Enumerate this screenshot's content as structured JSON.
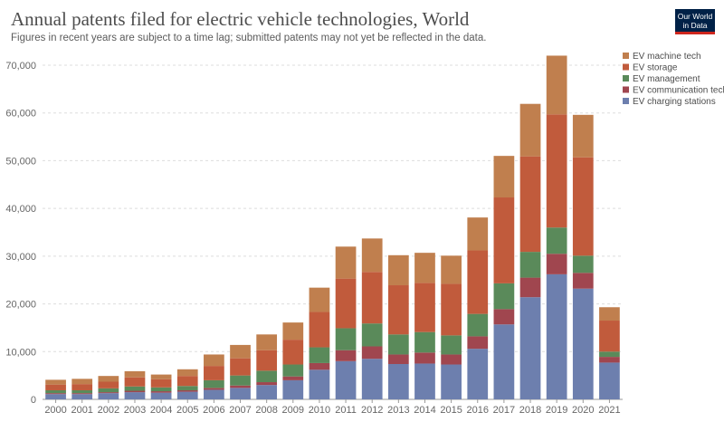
{
  "header": {
    "title": "Annual patents filed for electric vehicle technologies, World",
    "subtitle": "Figures in recent years are subject to a time lag; submitted patents may not yet be reflected in the data.",
    "logo_line1": "Our World",
    "logo_line2": "in Data"
  },
  "chart_data": {
    "type": "bar",
    "stacked": true,
    "title": "Annual patents filed for electric vehicle technologies, World",
    "subtitle": "Figures in recent years are subject to a time lag; submitted patents may not yet be reflected in the data.",
    "xlabel": "",
    "ylabel": "",
    "ylim": [
      0,
      70000
    ],
    "yticks": [
      0,
      10000,
      20000,
      30000,
      40000,
      50000,
      60000,
      70000
    ],
    "ytick_labels": [
      "0",
      "10,000",
      "20,000",
      "30,000",
      "40,000",
      "50,000",
      "60,000",
      "70,000"
    ],
    "grid": "horizontal dashed",
    "legend_position": "top-right",
    "categories": [
      "2000",
      "2001",
      "2002",
      "2003",
      "2004",
      "2005",
      "2006",
      "2007",
      "2008",
      "2009",
      "2010",
      "2011",
      "2012",
      "2013",
      "2014",
      "2015",
      "2016",
      "2017",
      "2018",
      "2019",
      "2020",
      "2021"
    ],
    "series": [
      {
        "name": "EV charging stations",
        "color": "#6d7fae",
        "values": [
          1100,
          1100,
          1300,
          1500,
          1400,
          1600,
          2000,
          2400,
          3000,
          4000,
          6200,
          8000,
          8500,
          7400,
          7500,
          7300,
          10600,
          15700,
          21400,
          26200,
          23200,
          7700
        ]
      },
      {
        "name": "EV communication tech",
        "color": "#a0464f",
        "values": [
          200,
          200,
          200,
          300,
          300,
          300,
          400,
          500,
          600,
          800,
          1400,
          2300,
          2600,
          2000,
          2300,
          2100,
          2600,
          3200,
          4100,
          4300,
          3300,
          1200
        ]
      },
      {
        "name": "EV management",
        "color": "#5a8a5a",
        "values": [
          600,
          600,
          800,
          900,
          800,
          900,
          1600,
          2100,
          2400,
          2500,
          3300,
          4600,
          4800,
          4200,
          4300,
          4000,
          4700,
          5400,
          5400,
          5500,
          3600,
          1100
        ]
      },
      {
        "name": "EV storage",
        "color": "#c15b3c",
        "values": [
          1200,
          1300,
          1400,
          1900,
          1700,
          2100,
          3000,
          3600,
          4300,
          5200,
          7400,
          10400,
          10800,
          10300,
          10300,
          10800,
          13300,
          18000,
          20000,
          23700,
          20600,
          6500
        ]
      },
      {
        "name": "EV machine tech",
        "color": "#c07f4e",
        "values": [
          1000,
          1100,
          1200,
          1300,
          1000,
          1400,
          2400,
          2800,
          3300,
          3600,
          5100,
          6700,
          7000,
          6300,
          6300,
          5900,
          6900,
          8700,
          11000,
          12300,
          8900,
          2800
        ]
      }
    ],
    "legend_order": [
      "EV machine tech",
      "EV storage",
      "EV management",
      "EV communication tech",
      "EV charging stations"
    ]
  }
}
